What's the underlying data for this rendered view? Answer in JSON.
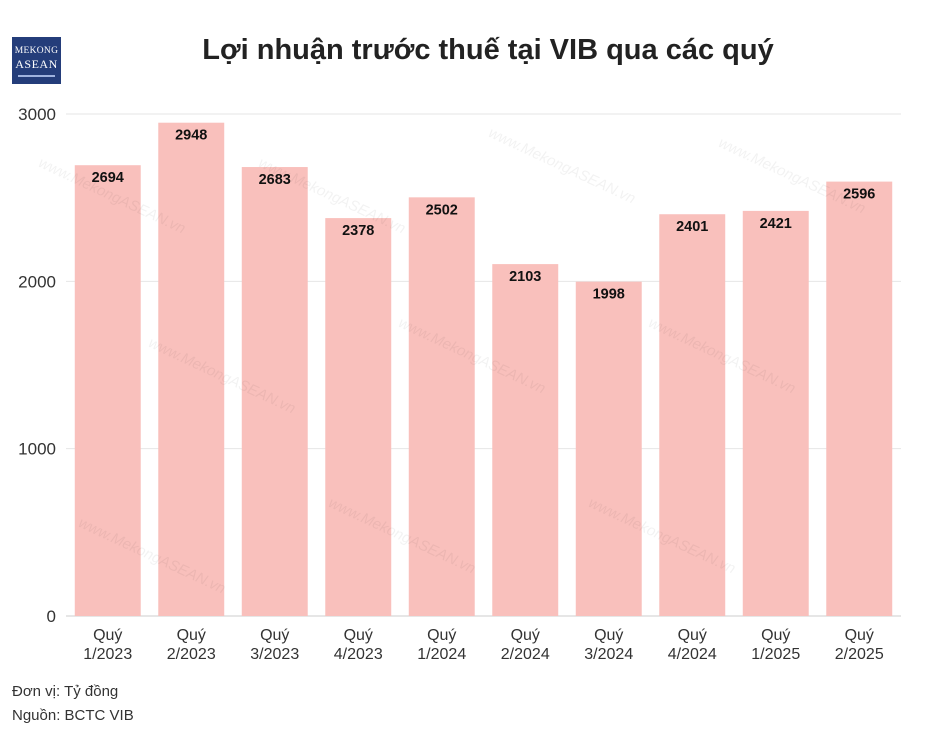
{
  "header": {
    "title": "Lợi nhuận trước thuế tại VIB qua các quý",
    "logo_line1": "MEKONG",
    "logo_line2": "ASEAN"
  },
  "watermark": "www.MekongASEAN.vn",
  "footer": {
    "unit": "Đơn vị: Tỷ đồng",
    "source": "Nguồn: BCTC VIB"
  },
  "colors": {
    "bar": "#f9c0bc",
    "grid": "#e6e6e6",
    "text": "#333333"
  },
  "chart_data": {
    "type": "bar",
    "title": "Lợi nhuận trước thuế tại VIB qua các quý",
    "categories": [
      [
        "Quý",
        "1/2023"
      ],
      [
        "Quý",
        "2/2023"
      ],
      [
        "Quý",
        "3/2023"
      ],
      [
        "Quý",
        "4/2023"
      ],
      [
        "Quý",
        "1/2024"
      ],
      [
        "Quý",
        "2/2024"
      ],
      [
        "Quý",
        "3/2024"
      ],
      [
        "Quý",
        "4/2024"
      ],
      [
        "Quý",
        "1/2025"
      ],
      [
        "Quý",
        "2/2025"
      ]
    ],
    "values": [
      2694,
      2948,
      2683,
      2378,
      2502,
      2103,
      1998,
      2401,
      2421,
      2596
    ],
    "ylim": [
      0,
      3000
    ],
    "yticks": [
      0,
      1000,
      2000,
      3000
    ],
    "grid": true,
    "data_labels": true
  }
}
